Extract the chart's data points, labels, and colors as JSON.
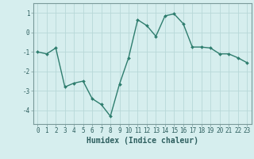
{
  "x": [
    0,
    1,
    2,
    3,
    4,
    5,
    6,
    7,
    8,
    9,
    10,
    11,
    12,
    13,
    14,
    15,
    16,
    17,
    18,
    19,
    20,
    21,
    22,
    23
  ],
  "y": [
    -1.0,
    -1.1,
    -0.8,
    -2.8,
    -2.6,
    -2.5,
    -3.4,
    -3.7,
    -4.3,
    -2.65,
    -1.3,
    0.65,
    0.35,
    -0.2,
    0.85,
    0.95,
    0.45,
    -0.75,
    -0.75,
    -0.8,
    -1.1,
    -1.1,
    -1.3,
    -1.55
  ],
  "line_color": "#2e7d6e",
  "marker": "D",
  "marker_size": 2.0,
  "bg_color": "#d6eeee",
  "grid_color": "#b8d8d8",
  "xlabel": "Humidex (Indice chaleur)",
  "ylim": [
    -4.7,
    1.5
  ],
  "xlim": [
    -0.5,
    23.5
  ],
  "yticks": [
    -4,
    -3,
    -2,
    -1,
    0,
    1
  ],
  "xticks": [
    0,
    1,
    2,
    3,
    4,
    5,
    6,
    7,
    8,
    9,
    10,
    11,
    12,
    13,
    14,
    15,
    16,
    17,
    18,
    19,
    20,
    21,
    22,
    23
  ],
  "tick_fontsize": 5.5,
  "xlabel_fontsize": 7.0,
  "linewidth": 1.0,
  "spine_color": "#7a9a9a"
}
